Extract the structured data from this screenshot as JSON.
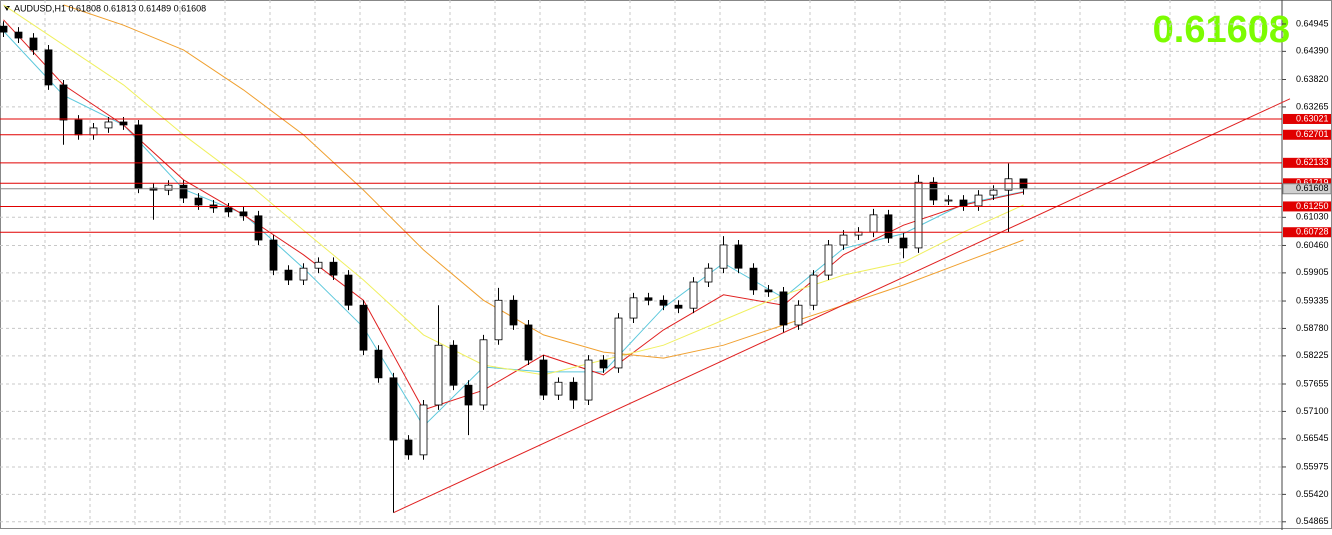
{
  "chart_data": {
    "type": "candlestick",
    "title": "AUDUSD,H1  0.61808 0.61813 0.61489 0.61608",
    "current_price": 0.61608,
    "ylim": [
      0.548,
      0.6543
    ],
    "yticks": [
      0.64945,
      {
        "value": 0.6439,
        "label": "0.64390"
      },
      {
        "value": 0.6382,
        "label": "0.63820"
      },
      0.63265,
      {
        "value": 0.6103,
        "label": "0.61030"
      },
      {
        "value": 0.6046,
        "label": "0.60460"
      },
      0.59905,
      0.59335,
      {
        "value": 0.5878,
        "label": "0.58780"
      },
      0.58225,
      0.57655,
      {
        "value": 0.571,
        "label": "0.57100"
      },
      0.56545,
      0.55975,
      {
        "value": 0.5542,
        "label": "0.55420"
      },
      0.54865
    ],
    "grid": true,
    "levels": [
      0.63021,
      0.62701,
      0.62133,
      0.61719,
      {
        "value": 0.6125,
        "label": "0.61250"
      },
      0.60728
    ],
    "level_color": "#e00000",
    "open": [
      0.649,
      0.6478,
      0.6466,
      0.6442,
      0.6371,
      0.63,
      0.627,
      0.6284,
      0.6296,
      0.629,
      0.6162,
      0.6158,
      0.6168,
      0.6142,
      0.6128,
      0.6122,
      0.6114,
      0.6106,
      0.6057,
      0.5996,
      0.5976,
      0.6,
      0.6012,
      0.5986,
      0.5925,
      0.5834,
      0.5778,
      0.5652,
      0.5622,
      0.5723,
      0.5844,
      0.5763,
      0.5723,
      0.5855,
      0.5935,
      0.5885,
      0.5814,
      0.5743,
      0.5769,
      0.5733,
      0.5814,
      0.5798,
      0.5899,
      0.594,
      0.5935,
      0.5925,
      0.5919,
      0.5972,
      0.6,
      0.6047,
      0.6,
      0.5956,
      0.5952,
      0.5885,
      0.5925,
      0.5986,
      0.6047,
      0.6067,
      0.6073,
      0.6108,
      0.6061,
      0.6041,
      0.6174,
      0.6138,
      0.6138,
      0.6126,
      0.6148,
      0.6158,
      0.61808
    ],
    "high": [
      0.65,
      0.6488,
      0.6476,
      0.6452,
      0.6381,
      0.631,
      0.6294,
      0.6306,
      0.6306,
      0.63,
      0.6172,
      0.6178,
      0.6178,
      0.6152,
      0.6138,
      0.6132,
      0.6124,
      0.6116,
      0.6067,
      0.6006,
      0.601,
      0.6022,
      0.6022,
      0.5996,
      0.5935,
      0.5844,
      0.5788,
      0.5662,
      0.5733,
      0.5925,
      0.5854,
      0.5773,
      0.5865,
      0.596,
      0.5945,
      0.5895,
      0.5824,
      0.5779,
      0.5779,
      0.5824,
      0.5824,
      0.5909,
      0.595,
      0.595,
      0.5945,
      0.5935,
      0.5982,
      0.601,
      0.6065,
      0.6057,
      0.601,
      0.5966,
      0.5962,
      0.5935,
      0.5996,
      0.6057,
      0.6077,
      0.6083,
      0.612,
      0.6118,
      0.6071,
      0.6189,
      0.6184,
      0.6148,
      0.6148,
      0.6158,
      0.6168,
      0.6212,
      0.61813
    ],
    "low": [
      0.6468,
      0.6456,
      0.6432,
      0.6361,
      0.625,
      0.626,
      0.626,
      0.6274,
      0.628,
      0.6152,
      0.6098,
      0.6148,
      0.6132,
      0.6118,
      0.6112,
      0.6104,
      0.6096,
      0.6047,
      0.5986,
      0.5966,
      0.5966,
      0.599,
      0.5976,
      0.5915,
      0.5824,
      0.5768,
      0.5505,
      0.5612,
      0.5612,
      0.5713,
      0.5753,
      0.5662,
      0.5713,
      0.5845,
      0.5875,
      0.5804,
      0.5733,
      0.5733,
      0.5715,
      0.5723,
      0.5788,
      0.5788,
      0.5889,
      0.5925,
      0.5915,
      0.5909,
      0.5909,
      0.5962,
      0.599,
      0.599,
      0.5946,
      0.5942,
      0.587,
      0.5875,
      0.5915,
      0.5976,
      0.6037,
      0.6057,
      0.6063,
      0.6051,
      0.602,
      0.6031,
      0.6128,
      0.6128,
      0.6116,
      0.6116,
      0.6138,
      0.6073,
      0.61489
    ],
    "close": [
      0.6478,
      0.6466,
      0.6442,
      0.6371,
      0.63,
      0.627,
      0.6284,
      0.6296,
      0.629,
      0.6162,
      0.6158,
      0.6168,
      0.6142,
      0.6128,
      0.6122,
      0.6114,
      0.6106,
      0.6057,
      0.5996,
      0.5976,
      0.6,
      0.6012,
      0.5986,
      0.5925,
      0.5834,
      0.5778,
      0.5652,
      0.5622,
      0.5723,
      0.5844,
      0.5763,
      0.5723,
      0.5855,
      0.5935,
      0.5885,
      0.5814,
      0.5743,
      0.5769,
      0.5733,
      0.5814,
      0.5798,
      0.5899,
      0.594,
      0.5935,
      0.5925,
      0.5919,
      0.5972,
      0.6,
      0.6047,
      0.6,
      0.5956,
      0.5952,
      0.5885,
      0.5925,
      0.5986,
      0.6047,
      0.6067,
      0.6073,
      0.6108,
      0.6061,
      0.6041,
      0.6174,
      0.6138,
      0.6138,
      0.6126,
      0.6148,
      0.6158,
      0.6181,
      0.61608
    ],
    "series": [
      {
        "color": "#5cc8dc",
        "x": [
          0,
          4,
          8,
          12,
          16,
          20,
          24,
          28,
          32,
          36,
          40,
          44,
          48,
          52,
          56,
          60,
          64,
          68
        ],
        "values": [
          0.648,
          0.635,
          0.629,
          0.616,
          0.611,
          0.6,
          0.588,
          0.568,
          0.58,
          0.579,
          0.579,
          0.592,
          0.601,
          0.594,
          0.604,
          0.607,
          0.613,
          0.6155
        ]
      },
      {
        "color": "#e02020",
        "x": [
          0,
          4,
          8,
          12,
          16,
          20,
          24,
          28,
          32,
          36,
          40,
          44,
          48,
          52,
          56,
          60,
          64,
          68
        ],
        "values": [
          0.6503,
          0.6371,
          0.629,
          0.6179,
          0.6108,
          0.6027,
          0.5935,
          0.5713,
          0.5753,
          0.5824,
          0.5784,
          0.5875,
          0.5946,
          0.5925,
          0.6027,
          0.6087,
          0.6128,
          0.6154
        ]
      },
      {
        "color": "#f0f060",
        "x": [
          0,
          4,
          8,
          12,
          16,
          20,
          24,
          28,
          32,
          36,
          40,
          44,
          48,
          52,
          56,
          60,
          64,
          68
        ],
        "values": [
          0.6533,
          0.6452,
          0.6371,
          0.627,
          0.6179,
          0.6077,
          0.5976,
          0.5865,
          0.5804,
          0.5784,
          0.5814,
          0.5844,
          0.5895,
          0.5946,
          0.5986,
          0.6012,
          0.6073,
          0.6128
        ]
      },
      {
        "color": "#f0a030",
        "x": [
          4,
          8,
          12,
          16,
          20,
          24,
          28,
          32,
          36,
          40,
          44,
          48,
          52,
          56,
          60,
          64,
          68
        ],
        "values": [
          0.6533,
          0.6492,
          0.6442,
          0.6361,
          0.627,
          0.6158,
          0.6037,
          0.5935,
          0.5865,
          0.583,
          0.5818,
          0.5844,
          0.5885,
          0.5925,
          0.5966,
          0.6012,
          0.6057
        ]
      }
    ],
    "trendlines": [
      {
        "color": "#e02020",
        "x": [
          26,
          85.8
        ],
        "values": [
          0.5505,
          0.6343
        ]
      }
    ]
  }
}
